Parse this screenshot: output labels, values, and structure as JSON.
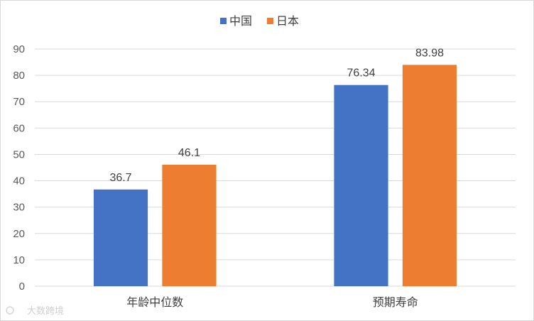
{
  "chart_data": {
    "type": "bar",
    "categories": [
      "年龄中位数",
      "预期寿命"
    ],
    "series": [
      {
        "name": "中国",
        "values": [
          36.7,
          76.34
        ],
        "labels": [
          "36.7",
          "76.34"
        ],
        "color": "#4472c4"
      },
      {
        "name": "日本",
        "values": [
          46.1,
          83.98
        ],
        "labels": [
          "46.1",
          "83.98"
        ],
        "color": "#ed7d31"
      }
    ],
    "ylim": [
      0,
      90
    ],
    "yticks": [
      "0",
      "10",
      "20",
      "30",
      "40",
      "50",
      "60",
      "70",
      "80",
      "90"
    ],
    "grid": true,
    "legend": "top-center",
    "title": "",
    "xlabel": "",
    "ylabel": ""
  },
  "watermark": "大数跨境",
  "colors": {
    "grid": "#d9d9d9",
    "text": "#595959"
  }
}
